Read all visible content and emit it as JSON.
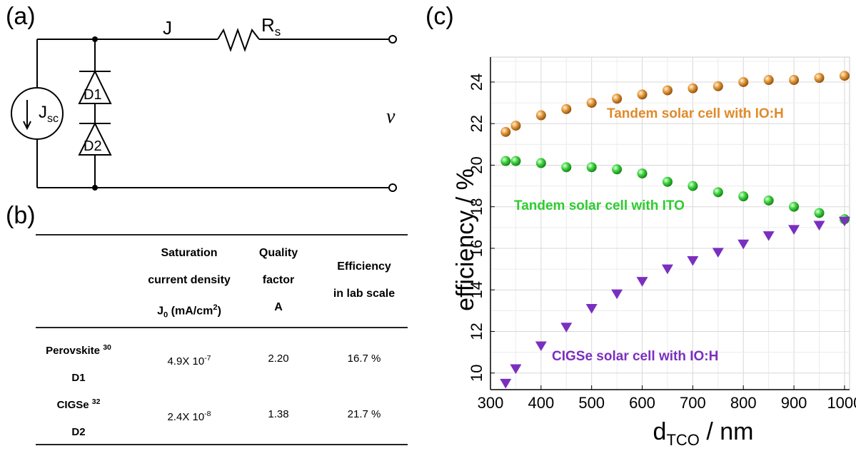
{
  "panels": {
    "a": "(a)",
    "b": "(b)",
    "c": "(c)"
  },
  "circuit": {
    "current_label": "J",
    "resistor_label": "R",
    "resistor_sub": "s",
    "source_label": "J",
    "source_sub": "sc",
    "diode1": "D1",
    "diode2": "D2",
    "voltage_label": "v"
  },
  "table": {
    "headers": {
      "j0": [
        "Saturation",
        "current density",
        "J"
      ],
      "j0_sub": "0",
      "j0_unit": " (mA/cm",
      "j0_unit_sup": "2",
      "j0_unit_end": ")",
      "quality": [
        "Quality",
        "factor",
        "A"
      ],
      "eff": [
        "Efficiency",
        "in lab scale"
      ]
    },
    "rows": [
      {
        "name": "Perovskite",
        "ref": "30",
        "diode": "D1",
        "j0_base": "4.9X 10",
        "j0_exp": "-7",
        "a": "2.20",
        "eff": "16.7 %"
      },
      {
        "name": "CIGSe",
        "ref": "32",
        "diode": "D2",
        "j0_base": "2.4X 10",
        "j0_exp": "-8",
        "a": "1.38",
        "eff": "21.7 %"
      }
    ]
  },
  "chart_data": {
    "type": "scatter",
    "ylabel": "efficiency / %",
    "xlabel_main": "d",
    "xlabel_sub": "TCO",
    "xlabel_unit": " / nm",
    "xlim": [
      300,
      1010
    ],
    "ylim": [
      9.2,
      25.2
    ],
    "xticks": [
      300,
      400,
      500,
      600,
      700,
      800,
      900,
      1000
    ],
    "yticks": [
      10,
      12,
      14,
      16,
      18,
      20,
      22,
      24
    ],
    "grid": true,
    "series": [
      {
        "name": "Tandem solar cell with IO:H",
        "color": "#e08a2a",
        "marker": "sphere",
        "x": [
          330,
          350,
          400,
          450,
          500,
          550,
          600,
          650,
          700,
          750,
          800,
          850,
          900,
          950,
          1000
        ],
        "y": [
          21.6,
          21.9,
          22.4,
          22.7,
          23.0,
          23.2,
          23.4,
          23.6,
          23.7,
          23.8,
          24.0,
          24.1,
          24.1,
          24.2,
          24.3
        ]
      },
      {
        "name": "Tandem solar cell with ITO",
        "color": "#2ecc2e",
        "marker": "sphere",
        "x": [
          330,
          350,
          400,
          450,
          500,
          550,
          600,
          650,
          700,
          750,
          800,
          850,
          900,
          950,
          1000
        ],
        "y": [
          20.2,
          20.2,
          20.1,
          19.9,
          19.9,
          19.8,
          19.6,
          19.2,
          19.0,
          18.7,
          18.5,
          18.3,
          18.0,
          17.7,
          17.4
        ]
      },
      {
        "name": "CIGSe solar cell with IO:H",
        "color": "#7a2fbf",
        "marker": "triangle-down",
        "x": [
          330,
          350,
          400,
          450,
          500,
          550,
          600,
          650,
          700,
          750,
          800,
          850,
          900,
          950,
          1000
        ],
        "y": [
          9.5,
          10.2,
          11.3,
          12.2,
          13.1,
          13.8,
          14.4,
          15.0,
          15.4,
          15.8,
          16.2,
          16.6,
          16.9,
          17.1,
          17.3
        ]
      }
    ]
  }
}
